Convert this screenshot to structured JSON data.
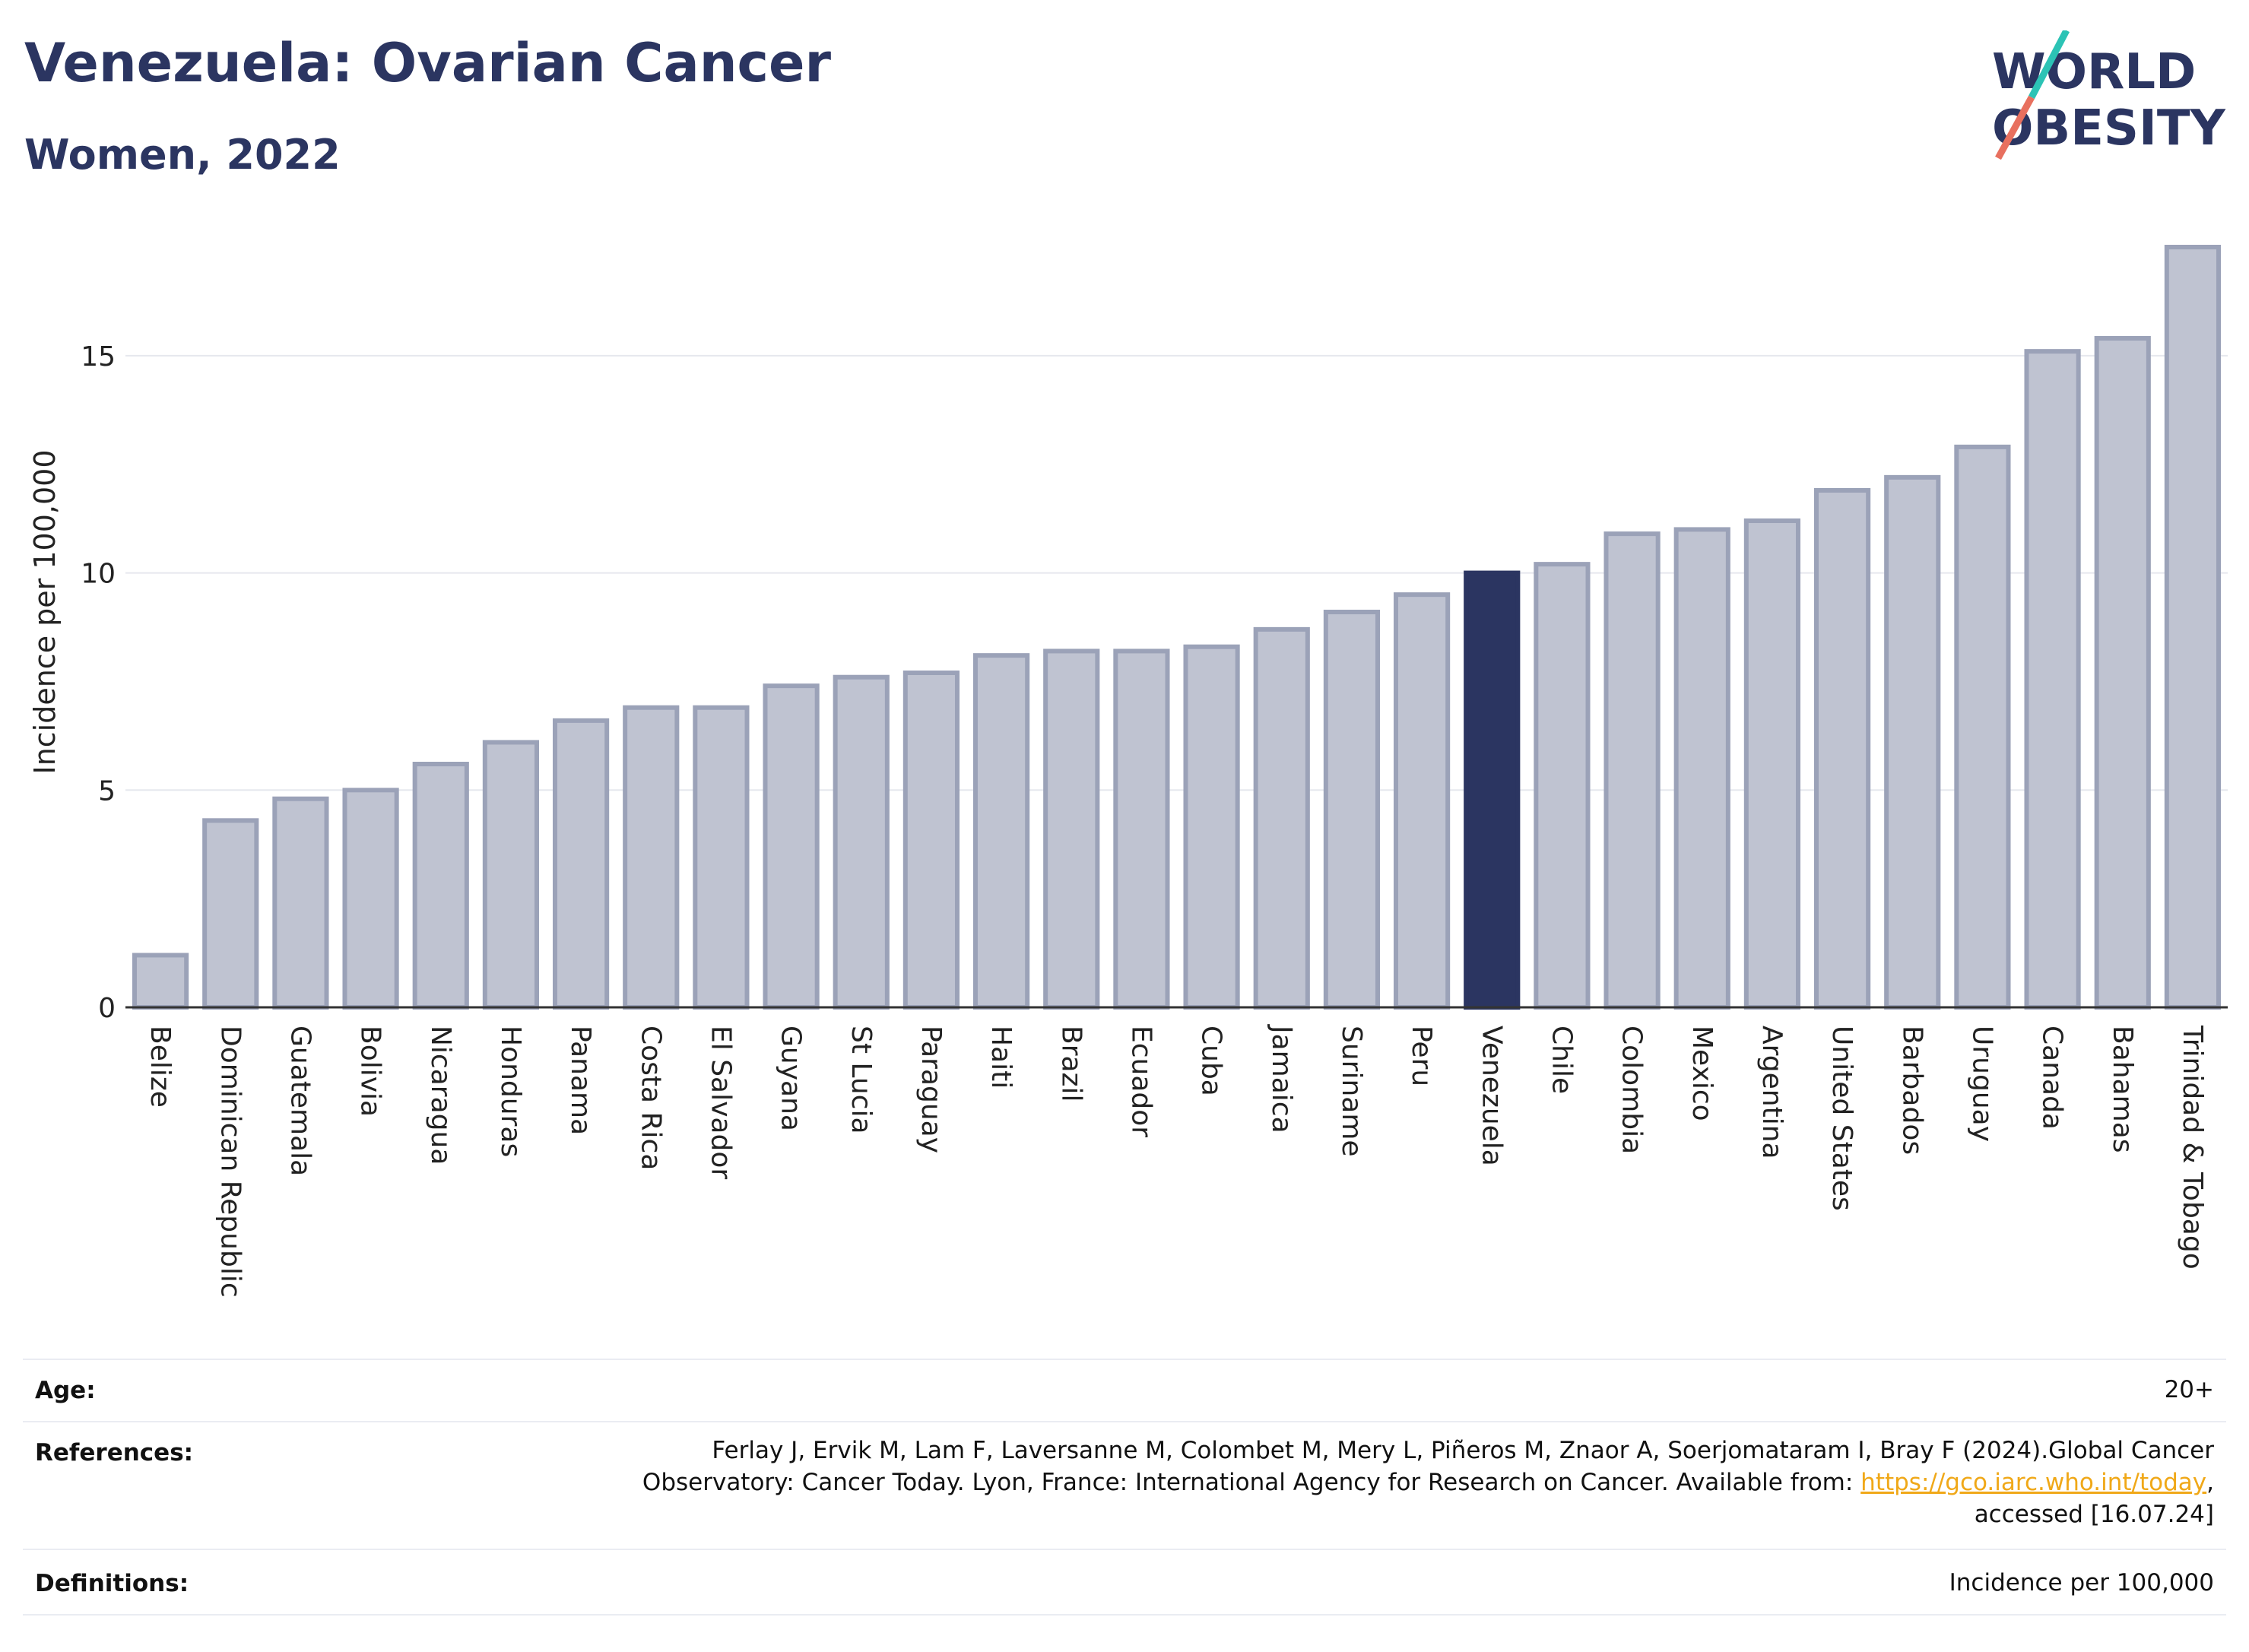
{
  "header": {
    "title": "Venezuela: Ovarian Cancer",
    "subtitle": "Women, 2022"
  },
  "logo": {
    "line1": "WORLD",
    "line2": "OBESITY",
    "colors": {
      "navy": "#2b3561",
      "teal": "#2cc3b5",
      "coral": "#e8705f"
    }
  },
  "chart_data": {
    "type": "bar",
    "ylabel": "Incidence per 100,000",
    "ylim": [
      0,
      17.5
    ],
    "yticks": [
      0,
      5,
      10,
      15
    ],
    "grid": true,
    "highlight": "Venezuela",
    "colors": {
      "bar": "#bfc3d1",
      "bar_edge": "#9ba2b8",
      "highlight": "#2b3561",
      "grid": "#e6e8ee",
      "axis": "#333333"
    },
    "categories": [
      "Belize",
      "Dominican Republic",
      "Guatemala",
      "Bolivia",
      "Nicaragua",
      "Honduras",
      "Panama",
      "Costa Rica",
      "El Salvador",
      "Guyana",
      "St Lucia",
      "Paraguay",
      "Haiti",
      "Brazil",
      "Ecuador",
      "Cuba",
      "Jamaica",
      "Suriname",
      "Peru",
      "Venezuela",
      "Chile",
      "Colombia",
      "Mexico",
      "Argentina",
      "United States",
      "Barbados",
      "Uruguay",
      "Canada",
      "Bahamas",
      "Trinidad & Tobago"
    ],
    "values": [
      1.2,
      4.3,
      4.8,
      5.0,
      5.6,
      6.1,
      6.6,
      6.9,
      6.9,
      7.4,
      7.6,
      7.7,
      8.1,
      8.2,
      8.2,
      8.3,
      8.7,
      9.1,
      9.5,
      10.0,
      10.2,
      10.9,
      11.0,
      11.2,
      11.9,
      12.2,
      12.9,
      15.1,
      15.4,
      17.5
    ]
  },
  "meta": {
    "age_label": "Age:",
    "age_value": "20+",
    "references_label": "References:",
    "references_text_1": "Ferlay J, Ervik M, Lam F, Laversanne M, Colombet M, Mery L, Piñeros M, Znaor A, Soerjomataram I, Bray F (2024).Global Cancer",
    "references_text_2": "Observatory: Cancer Today. Lyon, France: International Agency for Research on Cancer. Available from: ",
    "references_link": "https://gco.iarc.who.int/today",
    "references_text_3": ",",
    "references_text_4": "accessed [16.07.24]",
    "definitions_label": "Definitions:",
    "definitions_value": "Incidence per 100,000"
  }
}
